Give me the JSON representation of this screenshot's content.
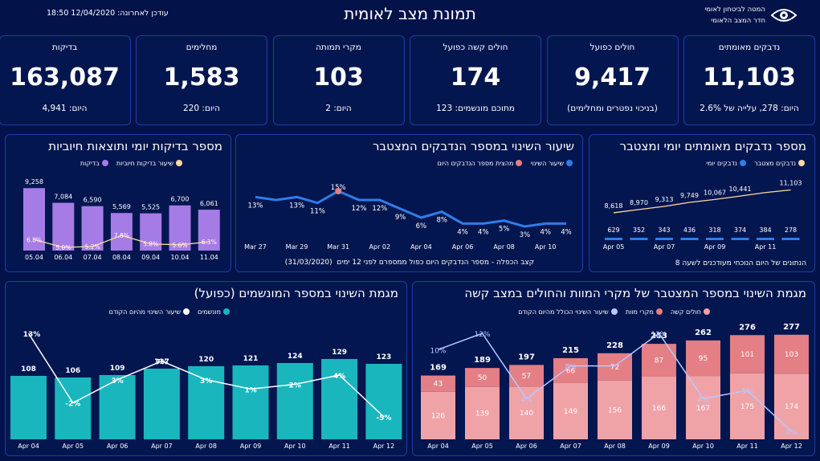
{
  "header": {
    "title": "תמונת מצב לאומית",
    "updated": "עודכן לאחרונה: 12/04/2020 18:50",
    "logo_line1": "המטה לביטחון לאומי",
    "logo_line2": "חדר המצב הלאומי"
  },
  "colors": {
    "background": "#04124a",
    "card_border": "#1b3fa2",
    "purple": "#a57be6",
    "blue": "#2f7de8",
    "teal": "#1ab6bd",
    "pink": "#e37f85",
    "pink_light": "#f0a3a7"
  },
  "kpis": [
    {
      "label": "נדבקים מאומתים",
      "value": "11,103",
      "sub": "היום: 278, עלייה של 2.6%"
    },
    {
      "label": "חולים כפועל",
      "value": "9,417",
      "sub": "(בניכוי נפטרים ומחלימים)"
    },
    {
      "label": "חולים קשה כפועל",
      "value": "174",
      "sub": "מתוכם מונשמים: 123"
    },
    {
      "label": "מקרי תמותה",
      "value": "103",
      "sub": "היום: 2"
    },
    {
      "label": "מחלימים",
      "value": "1,583",
      "sub": "היום: 220"
    },
    {
      "label": "בדיקות",
      "value": "163,087",
      "sub": "היום: 4,941"
    }
  ],
  "chart_data": [
    {
      "id": "confirmed",
      "type": "bar",
      "title": "מספר נדבקים מאומתים יומי ומצטבר",
      "legend": [
        "נדבקים מצטבר",
        "נדבקים יומי"
      ],
      "categories": [
        "Apr 05",
        "",
        "Apr 07",
        "",
        "Apr 09",
        "",
        "Apr 11",
        ""
      ],
      "series": [
        {
          "name": "נדבקים יומי",
          "values": [
            629,
            352,
            343,
            436,
            318,
            374,
            384,
            278
          ]
        },
        {
          "name": "נדבקים מצטבר",
          "values": [
            8618,
            8970,
            9313,
            9749,
            10067,
            10441,
            10825,
            11103
          ]
        }
      ],
      "value_labels_cumulative": [
        "8,618",
        "8,970",
        "9,313",
        "9,749",
        "10,067",
        "10,441",
        "",
        "11,103"
      ],
      "footnote": "הנתונים של היום הנוכחי מעודכנים לשעה 8"
    },
    {
      "id": "doubling",
      "type": "line",
      "title": "שיעור השינוי במספר הנדבקים המצטבר",
      "legend": [
        "שיעור השינוי",
        "מהצית מספר הנדבקים היום"
      ],
      "x_ticks": [
        "Mar 27",
        "Mar 29",
        "Mar 31",
        "Apr 02",
        "Apr 04",
        "Apr 06",
        "Apr 08",
        "Apr 10"
      ],
      "series": [
        {
          "name": "שיעור השינוי",
          "values": [
            13,
            12,
            13,
            11,
            15,
            12,
            12,
            9,
            6,
            8,
            4,
            4,
            5,
            3,
            4,
            4
          ]
        }
      ],
      "labels": [
        "13%",
        "",
        "13%",
        "11%",
        "15%",
        "12%",
        "12%",
        "9%",
        "6%",
        "8%",
        "4%",
        "4%",
        "5%",
        "3%",
        "4%",
        "4%"
      ],
      "highlight_index": 4,
      "footnote_a": "קצב הכפלה - מספר הנדבקים היום כפול ממספרם לפני 12 ימים",
      "footnote_b": "(31/03/2020)"
    },
    {
      "id": "tests",
      "type": "bar",
      "title": "מספר בדיקות יומי ותוצאות חיוביות",
      "legend": [
        "שיעור בדיקות חיוביות",
        "בדיקות"
      ],
      "categories": [
        "05.04",
        "06.04",
        "07.04",
        "08.04",
        "09.04",
        "10.04",
        "11.04"
      ],
      "series": [
        {
          "name": "בדיקות",
          "values": [
            9258,
            7084,
            6590,
            5569,
            5525,
            6700,
            6061
          ]
        },
        {
          "name": "שיעור בדיקות חיוביות",
          "values": [
            6.8,
            5.0,
            5.2,
            7.8,
            5.8,
            5.6,
            6.3
          ]
        }
      ],
      "value_labels": [
        "9,258",
        "7,084",
        "6,590",
        "5,569",
        "5,525",
        "6,700",
        "6,061"
      ],
      "rate_labels": [
        "6.8%",
        "5.0%",
        "5.2%",
        "7.8%",
        "5.8%",
        "5.6%",
        "6.3%"
      ],
      "ylim": [
        0,
        10000
      ]
    },
    {
      "id": "severe",
      "type": "bar",
      "title": "מגמת השינוי במספר המצטבר של מקרי המוות והחולים במצב קשה",
      "legend": [
        "חולים קשה",
        "מקרי מוות",
        "שיעור השינוי הכולל מהיום הקודם"
      ],
      "categories": [
        "Apr 04",
        "Apr 05",
        "Apr 06",
        "Apr 07",
        "Apr 08",
        "Apr 09",
        "Apr 10",
        "Apr 11",
        "Apr 12"
      ],
      "series": [
        {
          "name": "חולים קשה",
          "values": [
            126,
            139,
            140,
            149,
            156,
            166,
            167,
            175,
            174
          ]
        },
        {
          "name": "מקרי מוות",
          "values": [
            43,
            50,
            57,
            66,
            72,
            87,
            95,
            101,
            103
          ]
        },
        {
          "name": "שיעור השינוי הכולל מהיום הקודם",
          "values": [
            10,
            12,
            4,
            8,
            8,
            12,
            4,
            5,
            0
          ]
        }
      ],
      "totals": [
        "169",
        "189",
        "197",
        "215",
        "228",
        "253",
        "262",
        "276",
        "277"
      ],
      "rate_labels": [
        "10%",
        "12%",
        "4%",
        "8%",
        "",
        "12%",
        "4%",
        "5%",
        "0%"
      ]
    },
    {
      "id": "ventilated",
      "type": "bar",
      "title": "מגמת השינוי במספר המונשמים (כפועל)",
      "legend": [
        "מונשמים",
        "שיעור השינוי מהיום הקודם"
      ],
      "categories": [
        "Apr 04",
        "Apr 05",
        "Apr 06",
        "Apr 07",
        "Apr 08",
        "Apr 09",
        "Apr 10",
        "Apr 11",
        "Apr 12"
      ],
      "series": [
        {
          "name": "מונשמים",
          "values": [
            108,
            106,
            109,
            117,
            120,
            121,
            124,
            129,
            123
          ]
        },
        {
          "name": "שיעור השינוי מהיום הקודם",
          "values": [
            13,
            -2,
            3,
            7,
            3,
            1,
            2,
            4,
            -5
          ]
        }
      ],
      "value_labels": [
        "108",
        "106",
        "109",
        "117",
        "120",
        "121",
        "124",
        "129",
        "123"
      ],
      "rate_labels": [
        "13%",
        "-2%",
        "3%",
        "7%",
        "3%",
        "1%",
        "2%",
        "4%",
        "-5%"
      ]
    }
  ]
}
